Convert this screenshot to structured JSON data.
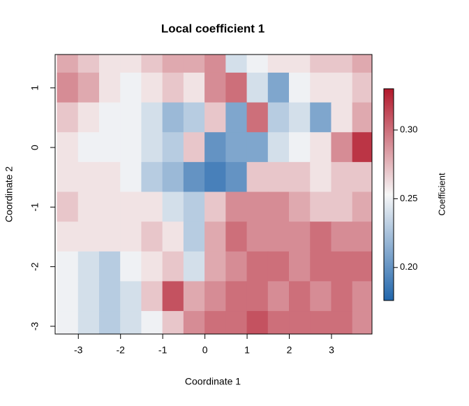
{
  "chart_data": {
    "type": "heatmap",
    "title": "Local coefficient 1",
    "xlabel": "Coordinate 1",
    "ylabel": "Coordinate 2",
    "colorbar_label": "Coefficient",
    "x": [
      -3.25,
      -2.75,
      -2.25,
      -1.75,
      -1.25,
      -0.75,
      -0.25,
      0.25,
      0.75,
      1.25,
      1.75,
      2.25,
      2.75,
      3.25,
      3.75
    ],
    "y": [
      1.5,
      1.0,
      0.5,
      0,
      -0.5,
      -1,
      -1.5,
      -2,
      -2.5,
      -3
    ],
    "z": [
      [
        0.28,
        0.27,
        0.26,
        0.26,
        0.27,
        0.28,
        0.28,
        0.29,
        0.24,
        0.25,
        0.26,
        0.26,
        0.27,
        0.27,
        0.28
      ],
      [
        0.29,
        0.28,
        0.26,
        0.25,
        0.26,
        0.27,
        0.26,
        0.29,
        0.3,
        0.24,
        0.21,
        0.25,
        0.26,
        0.26,
        0.27
      ],
      [
        0.27,
        0.26,
        0.25,
        0.25,
        0.24,
        0.22,
        0.23,
        0.27,
        0.21,
        0.3,
        0.23,
        0.24,
        0.21,
        0.26,
        0.28
      ],
      [
        0.26,
        0.25,
        0.25,
        0.25,
        0.24,
        0.23,
        0.27,
        0.2,
        0.21,
        0.21,
        0.24,
        0.25,
        0.26,
        0.29,
        0.32
      ],
      [
        0.26,
        0.26,
        0.26,
        0.25,
        0.23,
        0.22,
        0.2,
        0.19,
        0.2,
        0.27,
        0.27,
        0.27,
        0.26,
        0.27,
        0.27
      ],
      [
        0.27,
        0.26,
        0.26,
        0.26,
        0.26,
        0.24,
        0.23,
        0.27,
        0.29,
        0.29,
        0.29,
        0.28,
        0.27,
        0.27,
        0.28
      ],
      [
        0.26,
        0.26,
        0.26,
        0.26,
        0.27,
        0.26,
        0.23,
        0.28,
        0.3,
        0.29,
        0.29,
        0.29,
        0.3,
        0.29,
        0.29
      ],
      [
        0.25,
        0.24,
        0.23,
        0.25,
        0.26,
        0.27,
        0.24,
        0.28,
        0.29,
        0.3,
        0.3,
        0.29,
        0.3,
        0.3,
        0.3
      ],
      [
        0.25,
        0.24,
        0.23,
        0.24,
        0.27,
        0.31,
        0.28,
        0.29,
        0.3,
        0.3,
        0.29,
        0.3,
        0.29,
        0.3,
        0.29
      ],
      [
        0.25,
        0.24,
        0.23,
        0.24,
        0.25,
        0.27,
        0.29,
        0.3,
        0.3,
        0.31,
        0.3,
        0.3,
        0.3,
        0.3,
        0.29
      ]
    ],
    "xlim": [
      -3.55,
      3.96
    ],
    "ylim": [
      -3.13,
      1.56
    ],
    "xticks": [
      -3,
      -2,
      -1,
      0,
      1,
      2,
      3
    ],
    "yticks": [
      -3,
      -2,
      -1,
      0,
      1
    ],
    "clim": [
      0.176,
      0.33
    ],
    "cticks": [
      {
        "value": 0.2,
        "label": "0.20"
      },
      0.25,
      {
        "value": 0.3,
        "label": "0.30"
      }
    ],
    "colors": [
      "#2166ac",
      "#f7f7f7",
      "#b2182b"
    ]
  }
}
